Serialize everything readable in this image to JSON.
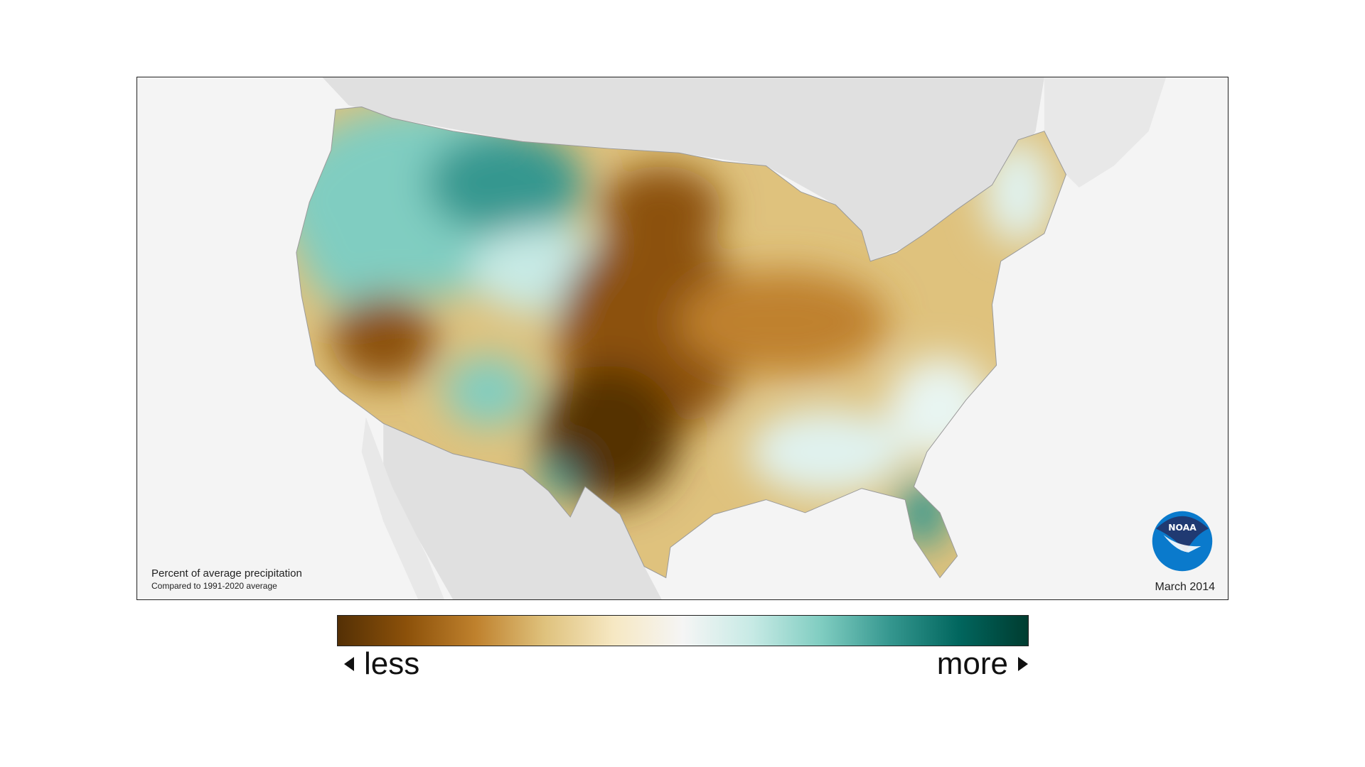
{
  "map": {
    "caption_title": "Percent of average precipitation",
    "caption_subtitle": "Compared to 1991-2020 average",
    "date": "March 2014",
    "logo_text": "NOAA"
  },
  "legend": {
    "less_label": "less",
    "more_label": "more",
    "colors": [
      "#543005",
      "#8c510a",
      "#bf812d",
      "#dfc27d",
      "#f6e8c3",
      "#f5f5f5",
      "#c7eae5",
      "#80cdc1",
      "#35978f",
      "#01665e",
      "#003c30"
    ]
  }
}
